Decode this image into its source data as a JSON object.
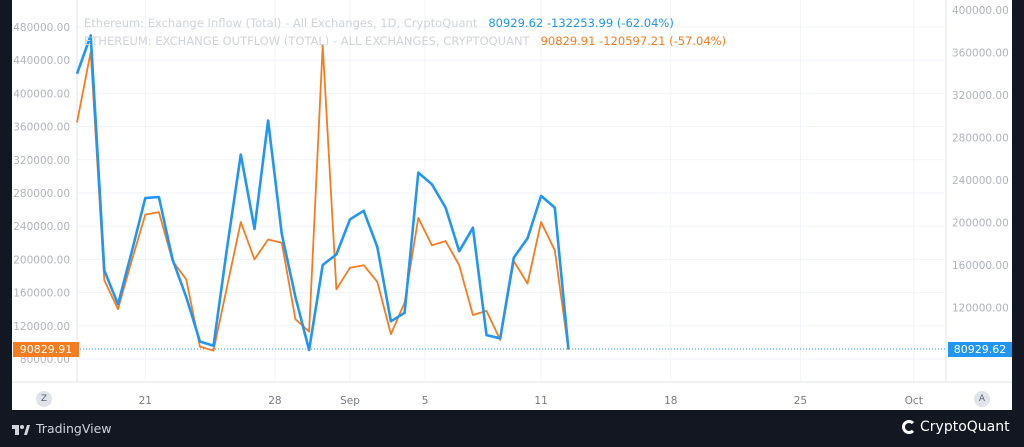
{
  "legend": {
    "inflow_name": "Ethereum: Exchange Inflow (Total) - All Exchanges, 1D, CryptoQuant",
    "inflow_values": "80929.62  -132253.99 (-62.04%)",
    "outflow_name": "ETHEREUM: EXCHANGE OUTFLOW (TOTAL) - ALL EXCHANGES, CRYPTOQUANT",
    "outflow_values": "90829.91  -120597.21 (-57.04%)"
  },
  "badges": {
    "left": "90829.91",
    "right": "80929.62"
  },
  "corner_buttons": {
    "left": "Z",
    "right": "A"
  },
  "branding": {
    "tradingview": "TradingView",
    "cryptoquant": "CryptoQuant"
  },
  "colors": {
    "inflow": "#2196f3",
    "outflow": "#f57c1f",
    "background": "#ffffff",
    "frame": "#131722"
  },
  "chart_data": {
    "type": "line",
    "grid": true,
    "x_ticks": [
      "21",
      "28",
      "Sep",
      "5",
      "11",
      "18",
      "25",
      "Oct"
    ],
    "left_axis": {
      "series": "Exchange Outflow (Total)",
      "ticks": [
        "480000.00",
        "440000.00",
        "400000.00",
        "360000.00",
        "320000.00",
        "280000.00",
        "240000.00",
        "200000.00",
        "160000.00",
        "120000.00",
        "80000.00"
      ],
      "ylim": [
        80000,
        480000
      ]
    },
    "right_axis": {
      "series": "Exchange Inflow (Total)",
      "ticks": [
        "400000.00",
        "360000.00",
        "320000.00",
        "280000.00",
        "240000.00",
        "200000.00",
        "160000.00",
        "120000.00",
        "80000.00"
      ],
      "ylim": [
        40000,
        410000
      ]
    },
    "series": [
      {
        "name": "Ethereum: Exchange Inflow (Total)",
        "axis": "right",
        "color": "#2196f3",
        "values": [
          340000,
          376000,
          155000,
          123000,
          172000,
          223000,
          224000,
          165000,
          130000,
          88000,
          84000,
          177000,
          264000,
          194000,
          296000,
          189000,
          130000,
          80000,
          160000,
          170000,
          203000,
          211000,
          177000,
          107000,
          115000,
          247000,
          236000,
          214000,
          173000,
          195000,
          94000,
          91000,
          167000,
          185000,
          225000,
          214000,
          81000
        ]
      },
      {
        "name": "Ethereum: Exchange Outflow (Total)",
        "axis": "left",
        "color": "#f57c1f",
        "values": [
          365000,
          450000,
          175000,
          140000,
          198000,
          254000,
          257000,
          198000,
          176000,
          95000,
          90000,
          168000,
          245000,
          200000,
          224000,
          220000,
          128000,
          113000,
          458000,
          164000,
          190000,
          193000,
          173000,
          110000,
          148000,
          250000,
          217000,
          222000,
          193000,
          133000,
          138000,
          103000,
          198000,
          171000,
          245000,
          211000,
          91000
        ]
      }
    ]
  }
}
